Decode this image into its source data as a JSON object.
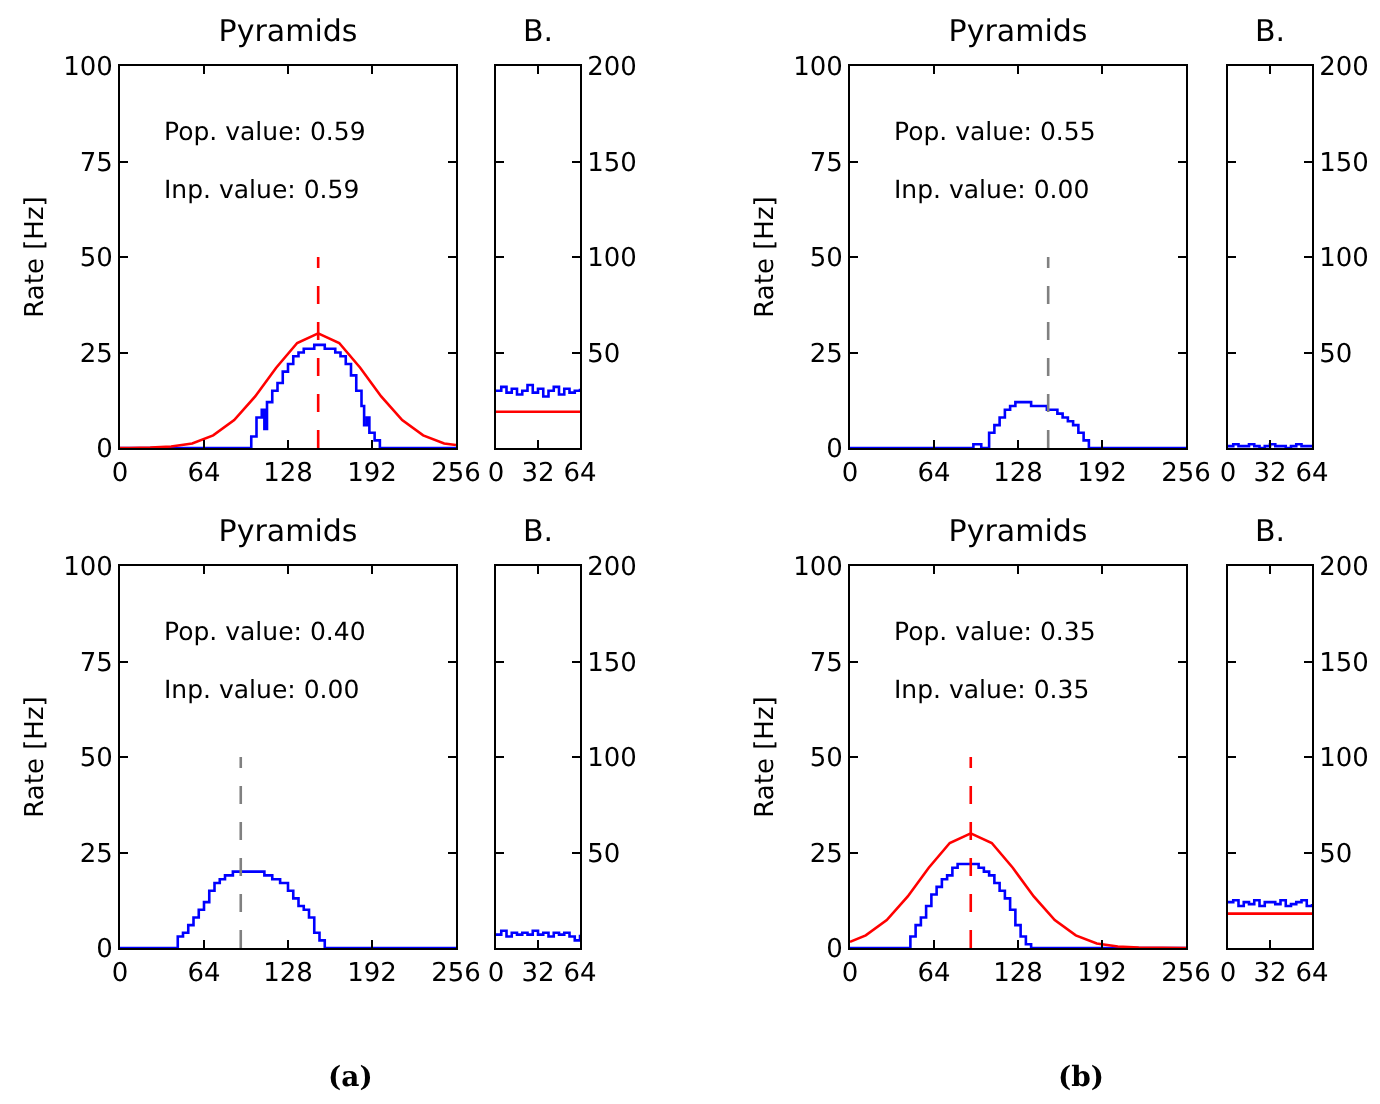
{
  "chart_data": [
    {
      "type": "step",
      "title": "Pyramids",
      "ylabel": "Rate [Hz]",
      "xlim": [
        0,
        256
      ],
      "xticks": [
        0,
        64,
        128,
        192,
        256
      ],
      "ylim": [
        0,
        100
      ],
      "yticks": [
        0,
        25,
        50,
        75,
        100
      ],
      "annotations": [
        "Pop. value: 0.59",
        "Inp. value: 0.59"
      ],
      "series": [
        {
          "type": "step",
          "color": "#0000ff",
          "x": [
            0,
            98,
            100,
            104,
            108,
            110,
            112,
            116,
            120,
            124,
            128,
            132,
            136,
            140,
            144,
            148,
            152,
            156,
            160,
            164,
            168,
            172,
            176,
            180,
            184,
            186,
            188,
            190,
            194,
            198,
            256
          ],
          "values": [
            0,
            0,
            3,
            8,
            10,
            5,
            12,
            15,
            17,
            20,
            22,
            24,
            25,
            26,
            26,
            27,
            27,
            26,
            26,
            25,
            24,
            22,
            19,
            15,
            11,
            6,
            8,
            4,
            2,
            0,
            0
          ]
        },
        {
          "type": "line",
          "color": "#ff0000",
          "x": [
            0,
            7,
            23,
            39,
            55,
            71,
            87,
            103,
            119,
            135,
            151,
            167,
            183,
            199,
            215,
            231,
            247,
            256
          ],
          "values": [
            0,
            0,
            0.1,
            0.4,
            1.2,
            3.3,
            7.3,
            13.5,
            21.0,
            27.5,
            30,
            27.5,
            21.0,
            13.5,
            7.3,
            3.3,
            1.2,
            0.8
          ]
        },
        {
          "type": "line",
          "color": "#ff0000",
          "line_style": "dashed",
          "x": [
            151,
            151
          ],
          "values": [
            0,
            50
          ]
        }
      ]
    },
    {
      "type": "step",
      "title": "B.",
      "xlim": [
        0,
        64
      ],
      "xticks": [
        0,
        32,
        64
      ],
      "y2lim": [
        0,
        200
      ],
      "y2ticks": [
        50,
        100,
        150,
        200
      ],
      "series": [
        {
          "type": "step",
          "axis": "y2",
          "color": "#0000ff",
          "x": [
            0,
            4,
            8,
            12,
            16,
            20,
            24,
            28,
            32,
            36,
            40,
            44,
            48,
            52,
            56,
            60,
            64
          ],
          "values": [
            30,
            32,
            29,
            31,
            28,
            30,
            33,
            29,
            31,
            27,
            30,
            32,
            28,
            31,
            29,
            30,
            31
          ]
        },
        {
          "type": "line",
          "axis": "y2",
          "color": "#ff0000",
          "x": [
            0,
            64
          ],
          "values": [
            19,
            19
          ]
        }
      ]
    },
    {
      "type": "step",
      "title": "Pyramids",
      "ylabel": "Rate [Hz]",
      "xlim": [
        0,
        256
      ],
      "xticks": [
        0,
        64,
        128,
        192,
        256
      ],
      "ylim": [
        0,
        100
      ],
      "yticks": [
        0,
        25,
        50,
        75,
        100
      ],
      "annotations": [
        "Pop. value: 0.55",
        "Inp. value: 0.00"
      ],
      "series": [
        {
          "type": "step",
          "color": "#0000ff",
          "x": [
            0,
            92,
            94,
            100,
            104,
            106,
            110,
            114,
            118,
            122,
            126,
            130,
            134,
            138,
            142,
            146,
            150,
            154,
            158,
            162,
            166,
            170,
            174,
            178,
            182,
            256
          ],
          "values": [
            0,
            0,
            1,
            0,
            0,
            4,
            6,
            8,
            10,
            11,
            12,
            12,
            12,
            11,
            11,
            11,
            10,
            10,
            9,
            8,
            7,
            6,
            4,
            2,
            0,
            0
          ]
        },
        {
          "type": "line",
          "color": "#808080",
          "line_style": "dashed",
          "x": [
            151,
            151
          ],
          "values": [
            0,
            50
          ]
        }
      ]
    },
    {
      "type": "step",
      "title": "B.",
      "xlim": [
        0,
        64
      ],
      "xticks": [
        0,
        32,
        64
      ],
      "y2lim": [
        0,
        200
      ],
      "y2ticks": [
        50,
        100,
        150,
        200
      ],
      "series": [
        {
          "type": "step",
          "axis": "y2",
          "color": "#0000ff",
          "x": [
            0,
            4,
            8,
            12,
            16,
            20,
            24,
            28,
            32,
            36,
            40,
            44,
            48,
            52,
            56,
            60,
            64
          ],
          "values": [
            1,
            2,
            1,
            1,
            2,
            1,
            0,
            1,
            2,
            1,
            1,
            0,
            1,
            2,
            1,
            1,
            1
          ]
        }
      ]
    },
    {
      "type": "step",
      "title": "Pyramids",
      "ylabel": "Rate [Hz]",
      "xlim": [
        0,
        256
      ],
      "xticks": [
        0,
        64,
        128,
        192,
        256
      ],
      "ylim": [
        0,
        100
      ],
      "yticks": [
        0,
        25,
        50,
        75,
        100
      ],
      "annotations": [
        "Pop. value: 0.40",
        "Inp. value: 0.00",
        "(a)"
      ],
      "series": [
        {
          "type": "step",
          "color": "#0000ff",
          "x": [
            0,
            42,
            44,
            48,
            52,
            56,
            60,
            64,
            68,
            72,
            76,
            80,
            86,
            92,
            98,
            104,
            110,
            116,
            122,
            128,
            132,
            136,
            140,
            144,
            148,
            152,
            156,
            256
          ],
          "values": [
            0,
            0,
            3,
            4,
            6,
            8,
            10,
            12,
            15,
            17,
            18,
            19,
            20,
            20,
            20,
            20,
            19,
            18,
            17,
            15,
            13,
            11,
            10,
            8,
            4,
            2,
            0,
            0
          ]
        },
        {
          "type": "line",
          "color": "#808080",
          "line_style": "dashed",
          "x": [
            92,
            92
          ],
          "values": [
            0,
            50
          ]
        }
      ]
    },
    {
      "type": "step",
      "title": "B.",
      "xlim": [
        0,
        64
      ],
      "xticks": [
        0,
        32,
        64
      ],
      "y2lim": [
        0,
        200
      ],
      "y2ticks": [
        50,
        100,
        150,
        200
      ],
      "series": [
        {
          "type": "step",
          "axis": "y2",
          "color": "#0000ff",
          "x": [
            0,
            4,
            8,
            12,
            16,
            20,
            24,
            28,
            32,
            36,
            40,
            44,
            48,
            52,
            56,
            60,
            64
          ],
          "values": [
            7,
            9,
            6,
            8,
            7,
            8,
            7,
            9,
            7,
            8,
            6,
            8,
            7,
            8,
            6,
            4,
            7
          ]
        }
      ]
    },
    {
      "type": "step",
      "title": "Pyramids",
      "ylabel": "Rate [Hz]",
      "xlim": [
        0,
        256
      ],
      "xticks": [
        0,
        64,
        128,
        192,
        256
      ],
      "ylim": [
        0,
        100
      ],
      "yticks": [
        0,
        25,
        50,
        75,
        100
      ],
      "annotations": [
        "Pop. value: 0.35",
        "Inp. value: 0.35",
        "(b)"
      ],
      "series": [
        {
          "type": "step",
          "color": "#0000ff",
          "x": [
            0,
            42,
            46,
            50,
            54,
            58,
            62,
            66,
            70,
            74,
            78,
            82,
            86,
            90,
            94,
            98,
            102,
            106,
            110,
            114,
            118,
            122,
            126,
            130,
            134,
            138,
            256
          ],
          "values": [
            0,
            0,
            3,
            6,
            8,
            11,
            14,
            16,
            18,
            19,
            21,
            22,
            22,
            22,
            22,
            21,
            20,
            19,
            17,
            15,
            13,
            10,
            6,
            3,
            1,
            0,
            0
          ]
        },
        {
          "type": "line",
          "color": "#ff0000",
          "x": [
            0,
            12,
            28,
            44,
            60,
            76,
            92,
            108,
            124,
            140,
            156,
            172,
            188,
            204,
            220,
            256
          ],
          "values": [
            1.6,
            3.3,
            7.3,
            13.5,
            21.0,
            27.5,
            30,
            27.5,
            21.0,
            13.5,
            7.3,
            3.3,
            1.2,
            0.4,
            0.1,
            0
          ]
        },
        {
          "type": "line",
          "color": "#ff0000",
          "line_style": "dashed",
          "x": [
            92,
            92
          ],
          "values": [
            0,
            50
          ]
        }
      ]
    },
    {
      "type": "step",
      "title": "B.",
      "xlim": [
        0,
        64
      ],
      "xticks": [
        0,
        32,
        64
      ],
      "y2lim": [
        0,
        200
      ],
      "y2ticks": [
        50,
        100,
        150,
        200
      ],
      "series": [
        {
          "type": "step",
          "axis": "y2",
          "color": "#0000ff",
          "x": [
            0,
            4,
            8,
            12,
            16,
            20,
            24,
            28,
            32,
            36,
            40,
            44,
            48,
            52,
            56,
            60,
            64
          ],
          "values": [
            24,
            25,
            22,
            24,
            23,
            25,
            22,
            24,
            24,
            23,
            25,
            22,
            23,
            24,
            25,
            22,
            23
          ]
        },
        {
          "type": "line",
          "axis": "y2",
          "color": "#ff0000",
          "x": [
            0,
            64
          ],
          "values": [
            18,
            18
          ]
        }
      ]
    }
  ]
}
